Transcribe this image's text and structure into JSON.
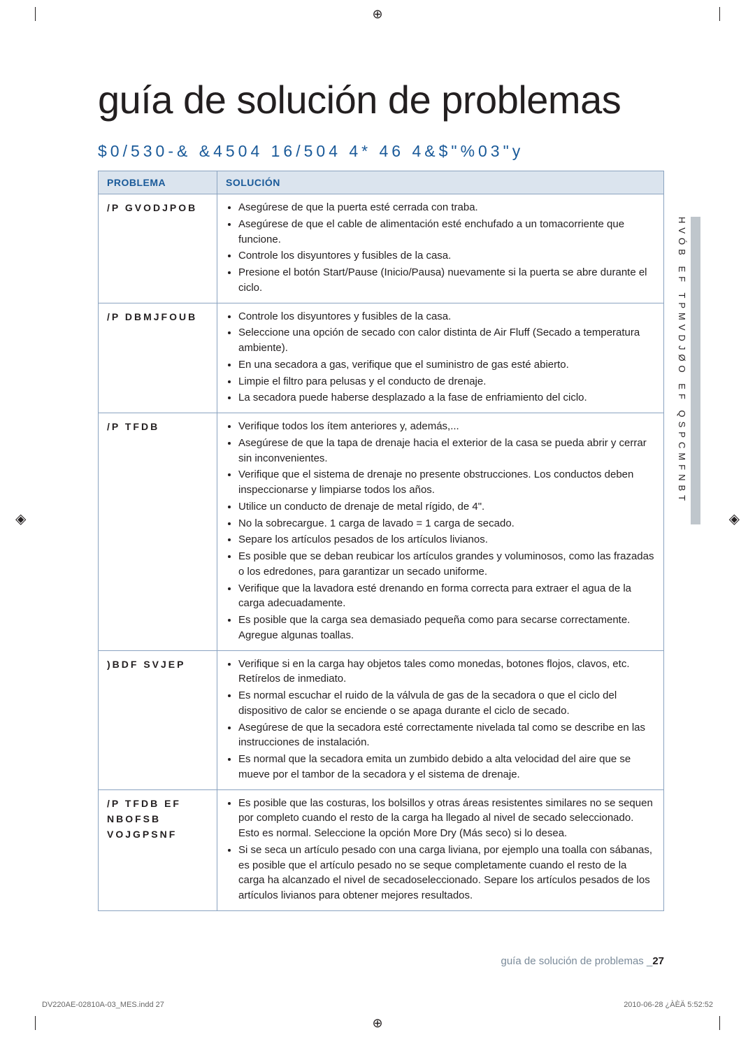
{
  "colors": {
    "text": "#231f20",
    "blue_heading": "#1a5a99",
    "table_header_bg": "#dbe4ee",
    "table_border": "#8aa3c0",
    "side_grey": "#bfc6cc",
    "footer_grey": "#7a8a99"
  },
  "typography": {
    "h1_size_pt": 42,
    "h2_size_pt": 17,
    "body_size_pt": 11
  },
  "crop_center_symbol": "⊕",
  "side_mark_symbol": "◈",
  "title": "guía de solución de problemas",
  "subtitle": "$0/530-& &4504 16/504 4* 46 4&$\"%03\"y",
  "table": {
    "header_problem": "PROBLEMA",
    "header_solution": "SOLUCIÓN",
    "rows": [
      {
        "problem": "/P GVODJPOB",
        "solutions": [
          "Asegúrese de que la puerta esté cerrada con traba.",
          "Asegúrese de que el cable de alimentación esté enchufado a un tomacorriente que funcione.",
          "Controle los disyuntores y fusibles de la casa.",
          "Presione el botón Start/Pause (Inicio/Pausa) nuevamente si la puerta se abre durante el ciclo."
        ]
      },
      {
        "problem": "/P DBMJFOUB",
        "solutions": [
          "Controle los disyuntores y fusibles de la casa.",
          "Seleccione una opción de secado con calor distinta de Air Fluff (Secado a temperatura ambiente).",
          "En una secadora a gas, verifique que el suministro de gas esté abierto.",
          "Limpie el filtro para pelusas y el conducto de drenaje.",
          "La secadora puede haberse desplazado a la fase de enfriamiento del ciclo."
        ]
      },
      {
        "problem": "/P TFDB",
        "solutions": [
          "Verifique todos los ítem anteriores y, además,...",
          "Asegúrese de que la tapa de drenaje hacia el exterior de la casa se pueda abrir y cerrar sin inconvenientes.",
          "Verifique que el sistema de drenaje no presente obstrucciones. Los conductos deben inspeccionarse y limpiarse todos los años.",
          "Utilice un conducto de drenaje de metal rígido, de 4\".",
          "No la sobrecargue. 1 carga de lavado = 1 carga de secado.",
          "Separe los artículos pesados de los artículos livianos.",
          "Es posible que se deban reubicar los artículos grandes y voluminosos, como las frazadas o los edredones, para garantizar un secado uniforme.",
          "Verifique que la lavadora esté drenando en forma correcta para extraer el agua de la carga adecuadamente.",
          "Es posible que la carga sea demasiado pequeña como para secarse correctamente. Agregue algunas toallas."
        ]
      },
      {
        "problem": ")BDF SVJEP",
        "solutions": [
          "Verifique si en la carga hay objetos tales como monedas, botones flojos, clavos, etc. Retírelos de inmediato.",
          "Es normal escuchar el ruido de la válvula de gas de la secadora o que el ciclo del dispositivo de calor se enciende o se apaga durante el ciclo de secado.",
          "Asegúrese de que la secadora esté correctamente nivelada tal como se describe en las instrucciones de instalación.",
          "Es normal que la secadora emita un zumbido debido a alta velocidad del aire que se mueve por el tambor de la secadora y el sistema de drenaje."
        ]
      },
      {
        "problem": "/P TFDB EF NBOFSB VOJGPSNF",
        "solutions": [
          "Es posible que las costuras, los bolsillos y otras áreas resistentes similares no se sequen por completo cuando el resto de la carga ha llegado al nivel de secado seleccionado. Esto es normal. Seleccione la opción More Dry (Más seco) si lo desea.",
          "Si se seca un artículo pesado con una carga liviana, por ejemplo una toalla con sábanas, es posible que el artículo pesado no se seque completamente cuando el resto de la carga ha alcanzado el nivel de secadoseleccionado. Separe los artículos pesados de los artículos livianos para obtener mejores resultados."
        ]
      }
    ]
  },
  "side_tab_text": "HVÓB EF TPMVDJØO EF QSPCMFNBT",
  "footer": {
    "label": "guía de solución de problemas _",
    "page": "27"
  },
  "print": {
    "left": "DV220AE-02810A-03_MES.indd   27",
    "right": "2010-06-28   ¿ÀÈÄ 5:52:52"
  }
}
